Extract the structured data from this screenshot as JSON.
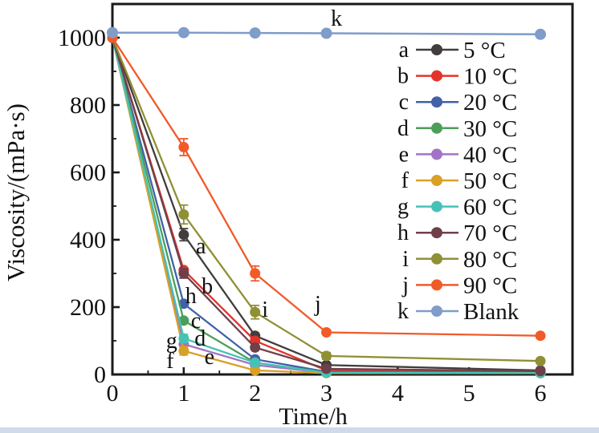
{
  "figure": {
    "background": "#ffffff",
    "bottom_strip_color": "#cfdbe8",
    "frame_color": "#1a1a1a"
  },
  "chart_data": {
    "type": "line",
    "title": "",
    "xlabel": "Time/h",
    "ylabel": "Viscosity/(mPa·s)",
    "xlim": [
      0,
      6.45
    ],
    "ylim": [
      0,
      1100
    ],
    "x_ticks": [
      0,
      1,
      2,
      3,
      4,
      5,
      6
    ],
    "y_ticks": [
      0,
      200,
      400,
      600,
      800,
      1000
    ],
    "x_minor_step": 0.5,
    "y_minor_ticks": [
      100,
      300,
      500,
      700,
      900
    ],
    "grid": false,
    "legend_position": "upper-right-inside",
    "x": [
      0,
      1,
      2,
      3,
      6
    ],
    "series": [
      {
        "key": "a",
        "name": "5 °C",
        "color": "#413d3d",
        "values": [
          1000,
          415,
          115,
          28,
          12
        ],
        "err": [
          0,
          18,
          8,
          0,
          0
        ]
      },
      {
        "key": "b",
        "name": "10 °C",
        "color": "#e2332a",
        "values": [
          1000,
          310,
          100,
          12,
          8
        ],
        "err": [
          0,
          0,
          0,
          0,
          0
        ]
      },
      {
        "key": "c",
        "name": "20 °C",
        "color": "#4161a8",
        "values": [
          1000,
          210,
          45,
          8,
          6
        ],
        "err": [
          0,
          0,
          0,
          0,
          0
        ]
      },
      {
        "key": "d",
        "name": "30 °C",
        "color": "#4d9e59",
        "values": [
          1000,
          160,
          35,
          6,
          5
        ],
        "err": [
          0,
          0,
          0,
          0,
          0
        ]
      },
      {
        "key": "e",
        "name": "40 °C",
        "color": "#a173c5",
        "values": [
          1000,
          90,
          28,
          5,
          4
        ],
        "err": [
          0,
          0,
          0,
          0,
          0
        ]
      },
      {
        "key": "f",
        "name": "50 °C",
        "color": "#d8a126",
        "values": [
          1000,
          70,
          12,
          4,
          4
        ],
        "err": [
          0,
          12,
          0,
          0,
          0
        ]
      },
      {
        "key": "g",
        "name": "60 °C",
        "color": "#45c2b5",
        "values": [
          1000,
          107,
          35,
          5,
          4
        ],
        "err": [
          0,
          12,
          0,
          0,
          0
        ]
      },
      {
        "key": "h",
        "name": "70 °C",
        "color": "#70404a",
        "values": [
          1000,
          300,
          80,
          17,
          10
        ],
        "err": [
          0,
          14,
          0,
          0,
          0
        ]
      },
      {
        "key": "i",
        "name": "80 °C",
        "color": "#8f9034",
        "values": [
          1000,
          475,
          185,
          55,
          40
        ],
        "err": [
          0,
          28,
          20,
          10,
          0
        ]
      },
      {
        "key": "j",
        "name": "90 °C",
        "color": "#f15a29",
        "values": [
          1000,
          675,
          300,
          125,
          115
        ],
        "err": [
          0,
          25,
          22,
          0,
          0
        ]
      },
      {
        "key": "k",
        "name": "Blank",
        "color": "#7f9cca",
        "values": [
          1015,
          1015,
          1014,
          1013,
          1010
        ],
        "err": [
          0,
          0,
          0,
          0,
          0
        ]
      }
    ],
    "annotations": [
      {
        "label": "a",
        "x": 1.24,
        "y": 383
      },
      {
        "label": "b",
        "x": 1.33,
        "y": 264
      },
      {
        "label": "c",
        "x": 1.17,
        "y": 162
      },
      {
        "label": "d",
        "x": 1.23,
        "y": 110
      },
      {
        "label": "e",
        "x": 1.36,
        "y": 55
      },
      {
        "label": "f",
        "x": 0.81,
        "y": 43
      },
      {
        "label": "g",
        "x": 0.83,
        "y": 102
      },
      {
        "label": "h",
        "x": 1.1,
        "y": 236
      },
      {
        "label": "i",
        "x": 2.14,
        "y": 195
      },
      {
        "label": "j",
        "x": 2.88,
        "y": 212
      },
      {
        "label": "k",
        "x": 3.14,
        "y": 1060
      }
    ]
  }
}
